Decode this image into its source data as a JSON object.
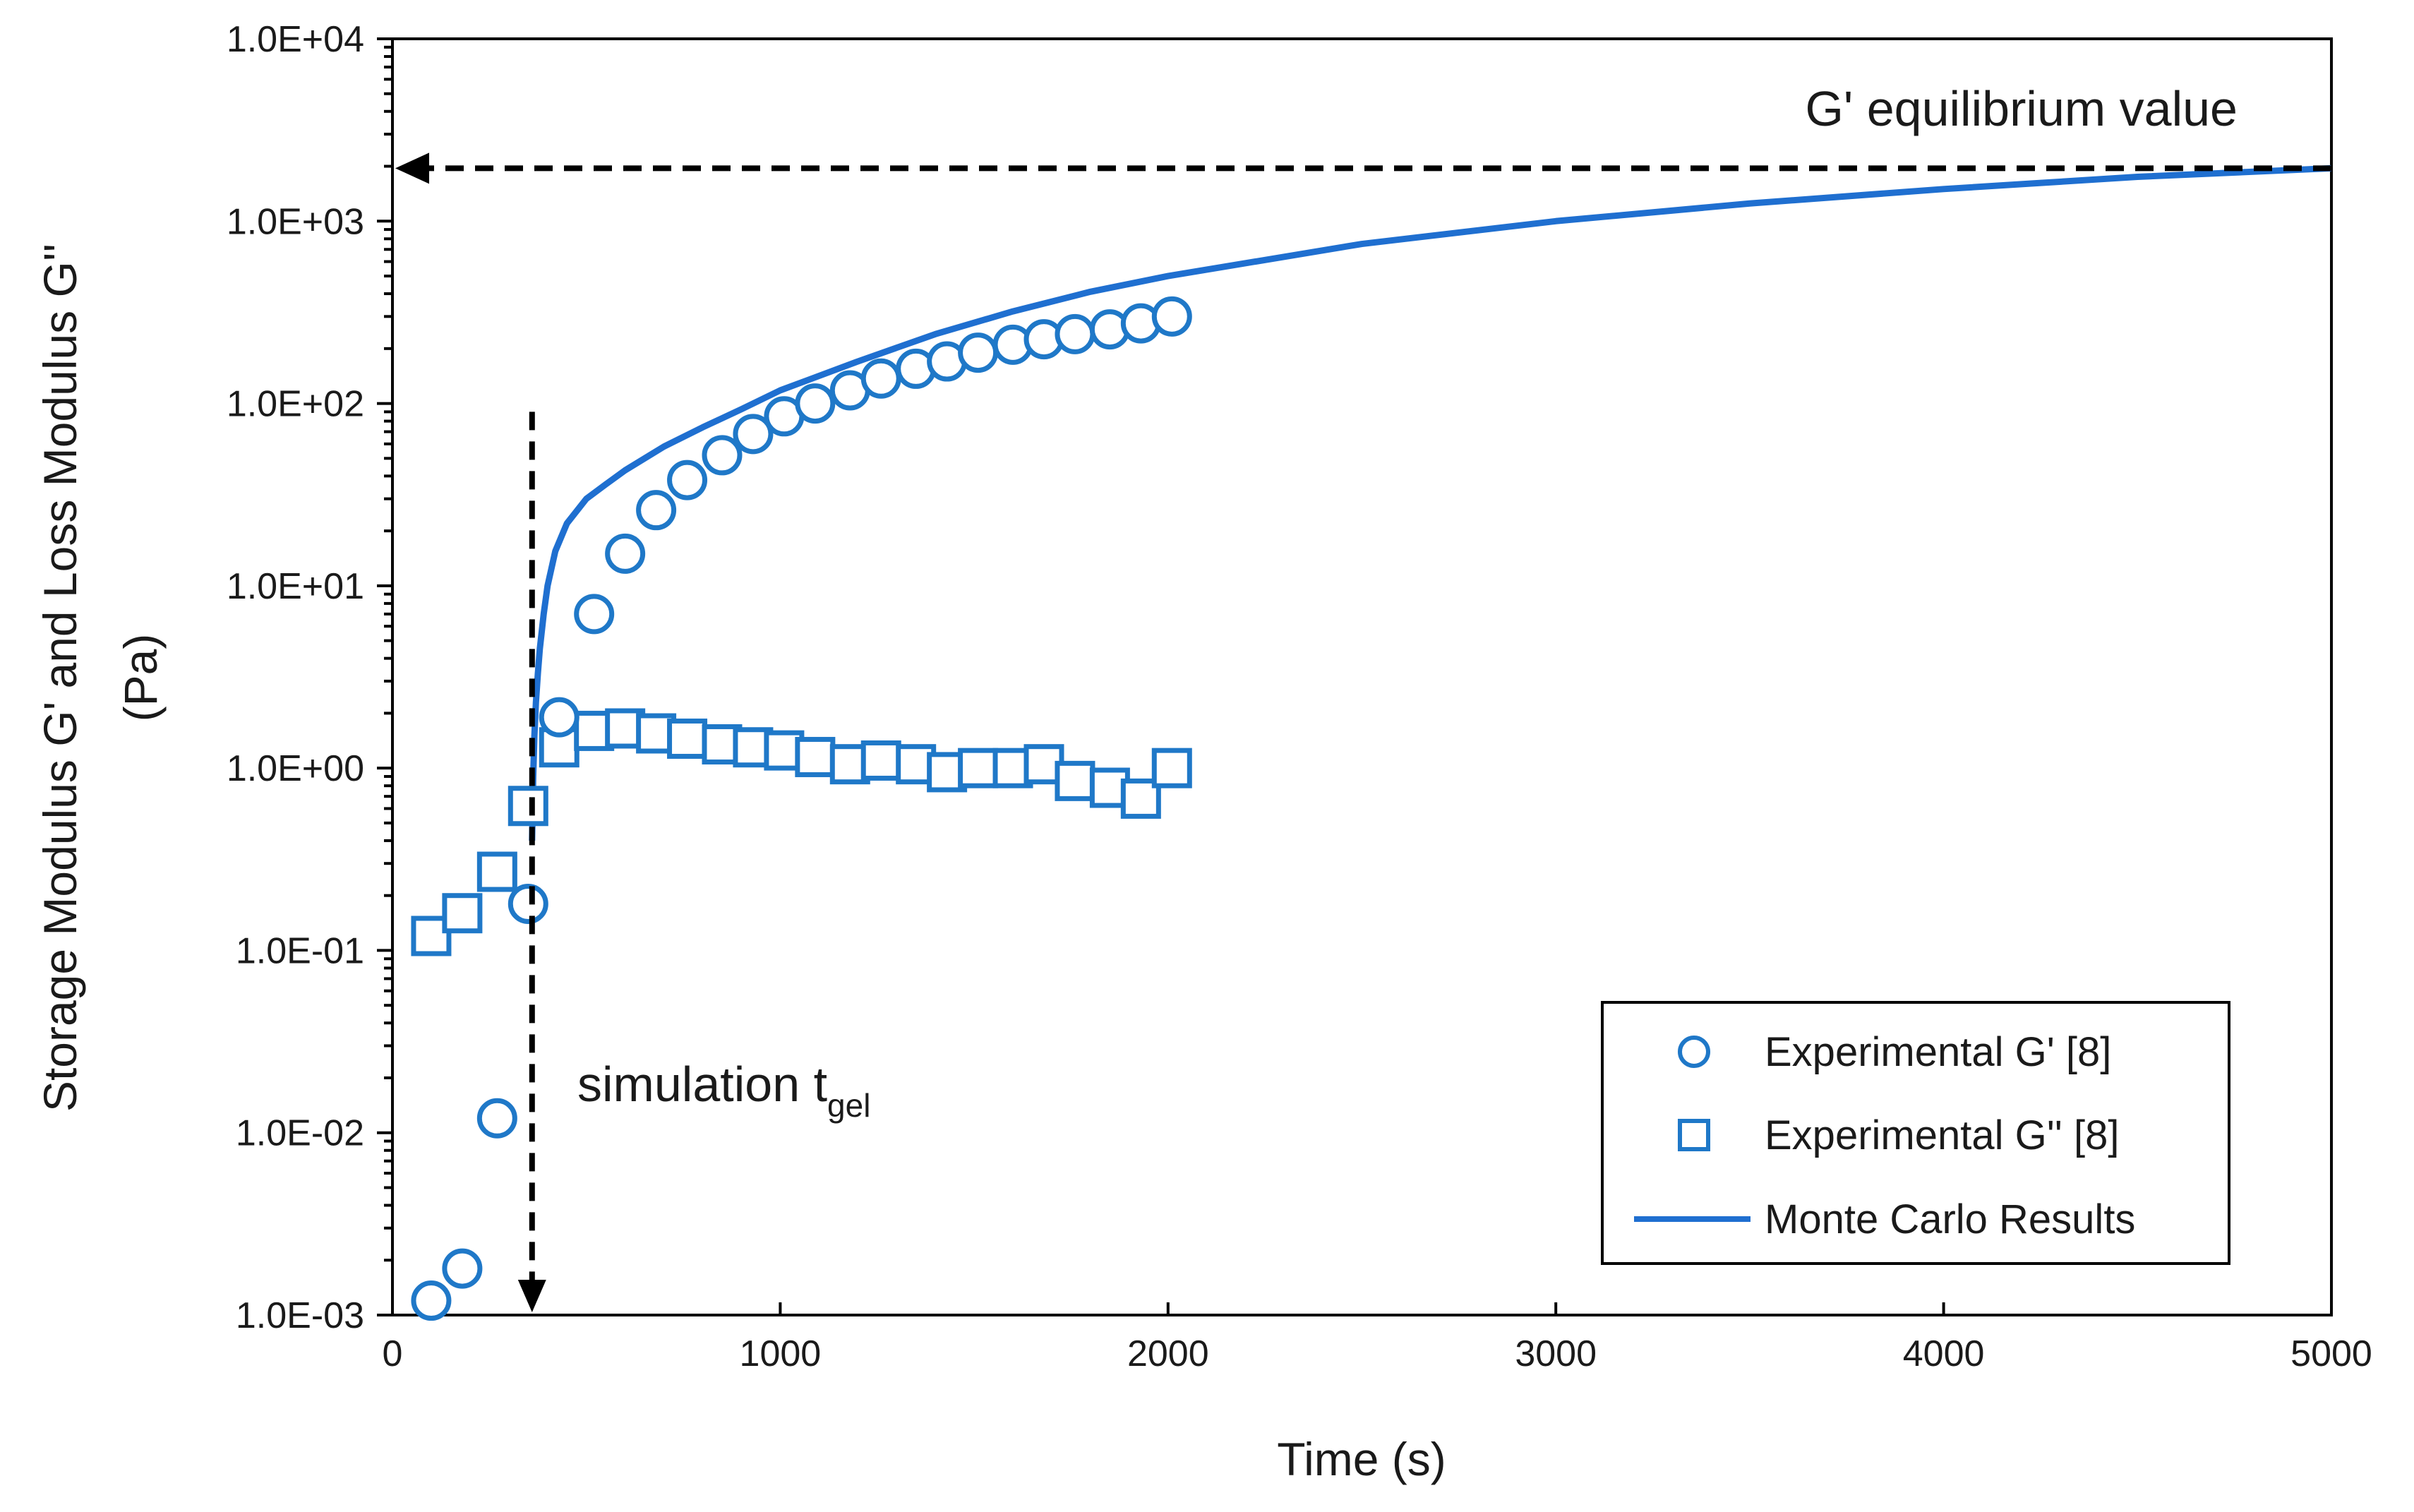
{
  "chart_data": {
    "type": "scatter",
    "title": "",
    "xlabel": "Time (s)",
    "ylabel": "Storage Modulus G' and Loss Modulus G''",
    "ylabel_units": "(Pa)",
    "xlim": [
      0,
      5000
    ],
    "ylim": [
      0.001,
      10000
    ],
    "yscale": "log",
    "x_ticks": [
      0,
      1000,
      2000,
      3000,
      4000,
      5000
    ],
    "x_tick_labels": [
      "0",
      "1000",
      "2000",
      "3000",
      "4000",
      "5000"
    ],
    "y_ticks": [
      0.001,
      0.01,
      0.1,
      1,
      10,
      100,
      1000,
      10000
    ],
    "y_tick_labels": [
      "1.0E-03",
      "1.0E-02",
      "1.0E-01",
      "1.0E+00",
      "1.0E+01",
      "1.0E+02",
      "1.0E+03",
      "1.0E+04"
    ],
    "grid": false,
    "legend_position": "bottom-right",
    "series": [
      {
        "name": "Experimental G' [8]",
        "marker": "circle",
        "color": "#1f78c8",
        "x": [
          100,
          180,
          270,
          350,
          430,
          520,
          600,
          680,
          760,
          850,
          930,
          1010,
          1090,
          1180,
          1260,
          1350,
          1430,
          1510,
          1600,
          1680,
          1760,
          1850,
          1930,
          2010
        ],
        "y": [
          0.0012,
          0.0018,
          0.012,
          0.18,
          1.9,
          7,
          15,
          26,
          38,
          52,
          68,
          85,
          100,
          118,
          137,
          155,
          170,
          190,
          210,
          225,
          240,
          255,
          275,
          300
        ]
      },
      {
        "name": "Experimental G'' [8]",
        "marker": "square",
        "color": "#1f78c8",
        "x": [
          100,
          180,
          270,
          350,
          430,
          520,
          600,
          680,
          760,
          850,
          930,
          1010,
          1090,
          1180,
          1260,
          1350,
          1430,
          1510,
          1600,
          1680,
          1760,
          1850,
          1930,
          2010
        ],
        "y": [
          0.12,
          0.16,
          0.27,
          0.62,
          1.3,
          1.6,
          1.65,
          1.55,
          1.45,
          1.35,
          1.3,
          1.25,
          1.15,
          1.05,
          1.1,
          1.05,
          0.95,
          1.0,
          1.0,
          1.05,
          0.85,
          0.78,
          0.68,
          1.0
        ]
      },
      {
        "name": "Monte Carlo Results",
        "marker": "line",
        "color": "#1f6fd0",
        "x": [
          360,
          363,
          366,
          370,
          375,
          380,
          390,
          400,
          420,
          450,
          500,
          550,
          600,
          700,
          800,
          900,
          1000,
          1200,
          1400,
          1600,
          1800,
          2000,
          2500,
          3000,
          3500,
          4000,
          4500,
          5000
        ],
        "y": [
          0.4,
          0.9,
          1.5,
          2.3,
          3.3,
          4.5,
          7,
          10,
          15.5,
          22,
          30,
          36,
          43,
          58,
          74,
          93,
          118,
          170,
          240,
          320,
          410,
          500,
          750,
          1000,
          1250,
          1500,
          1750,
          1950
        ]
      }
    ],
    "annotations": [
      {
        "text": "G' equilibrium value",
        "arrow": "horizontal",
        "y_value": 1950,
        "from_x": 5000,
        "to_x": 0
      },
      {
        "text": "simulation t",
        "subscript": "gel",
        "arrow": "vertical",
        "x_value": 360,
        "from_y": 90,
        "to_y": 0.001
      }
    ],
    "legend": [
      {
        "label": "Experimental G' [8]",
        "symbol": "circle"
      },
      {
        "label": "Experimental G'' [8]",
        "symbol": "square"
      },
      {
        "label": "Monte Carlo Results",
        "symbol": "line"
      }
    ]
  }
}
